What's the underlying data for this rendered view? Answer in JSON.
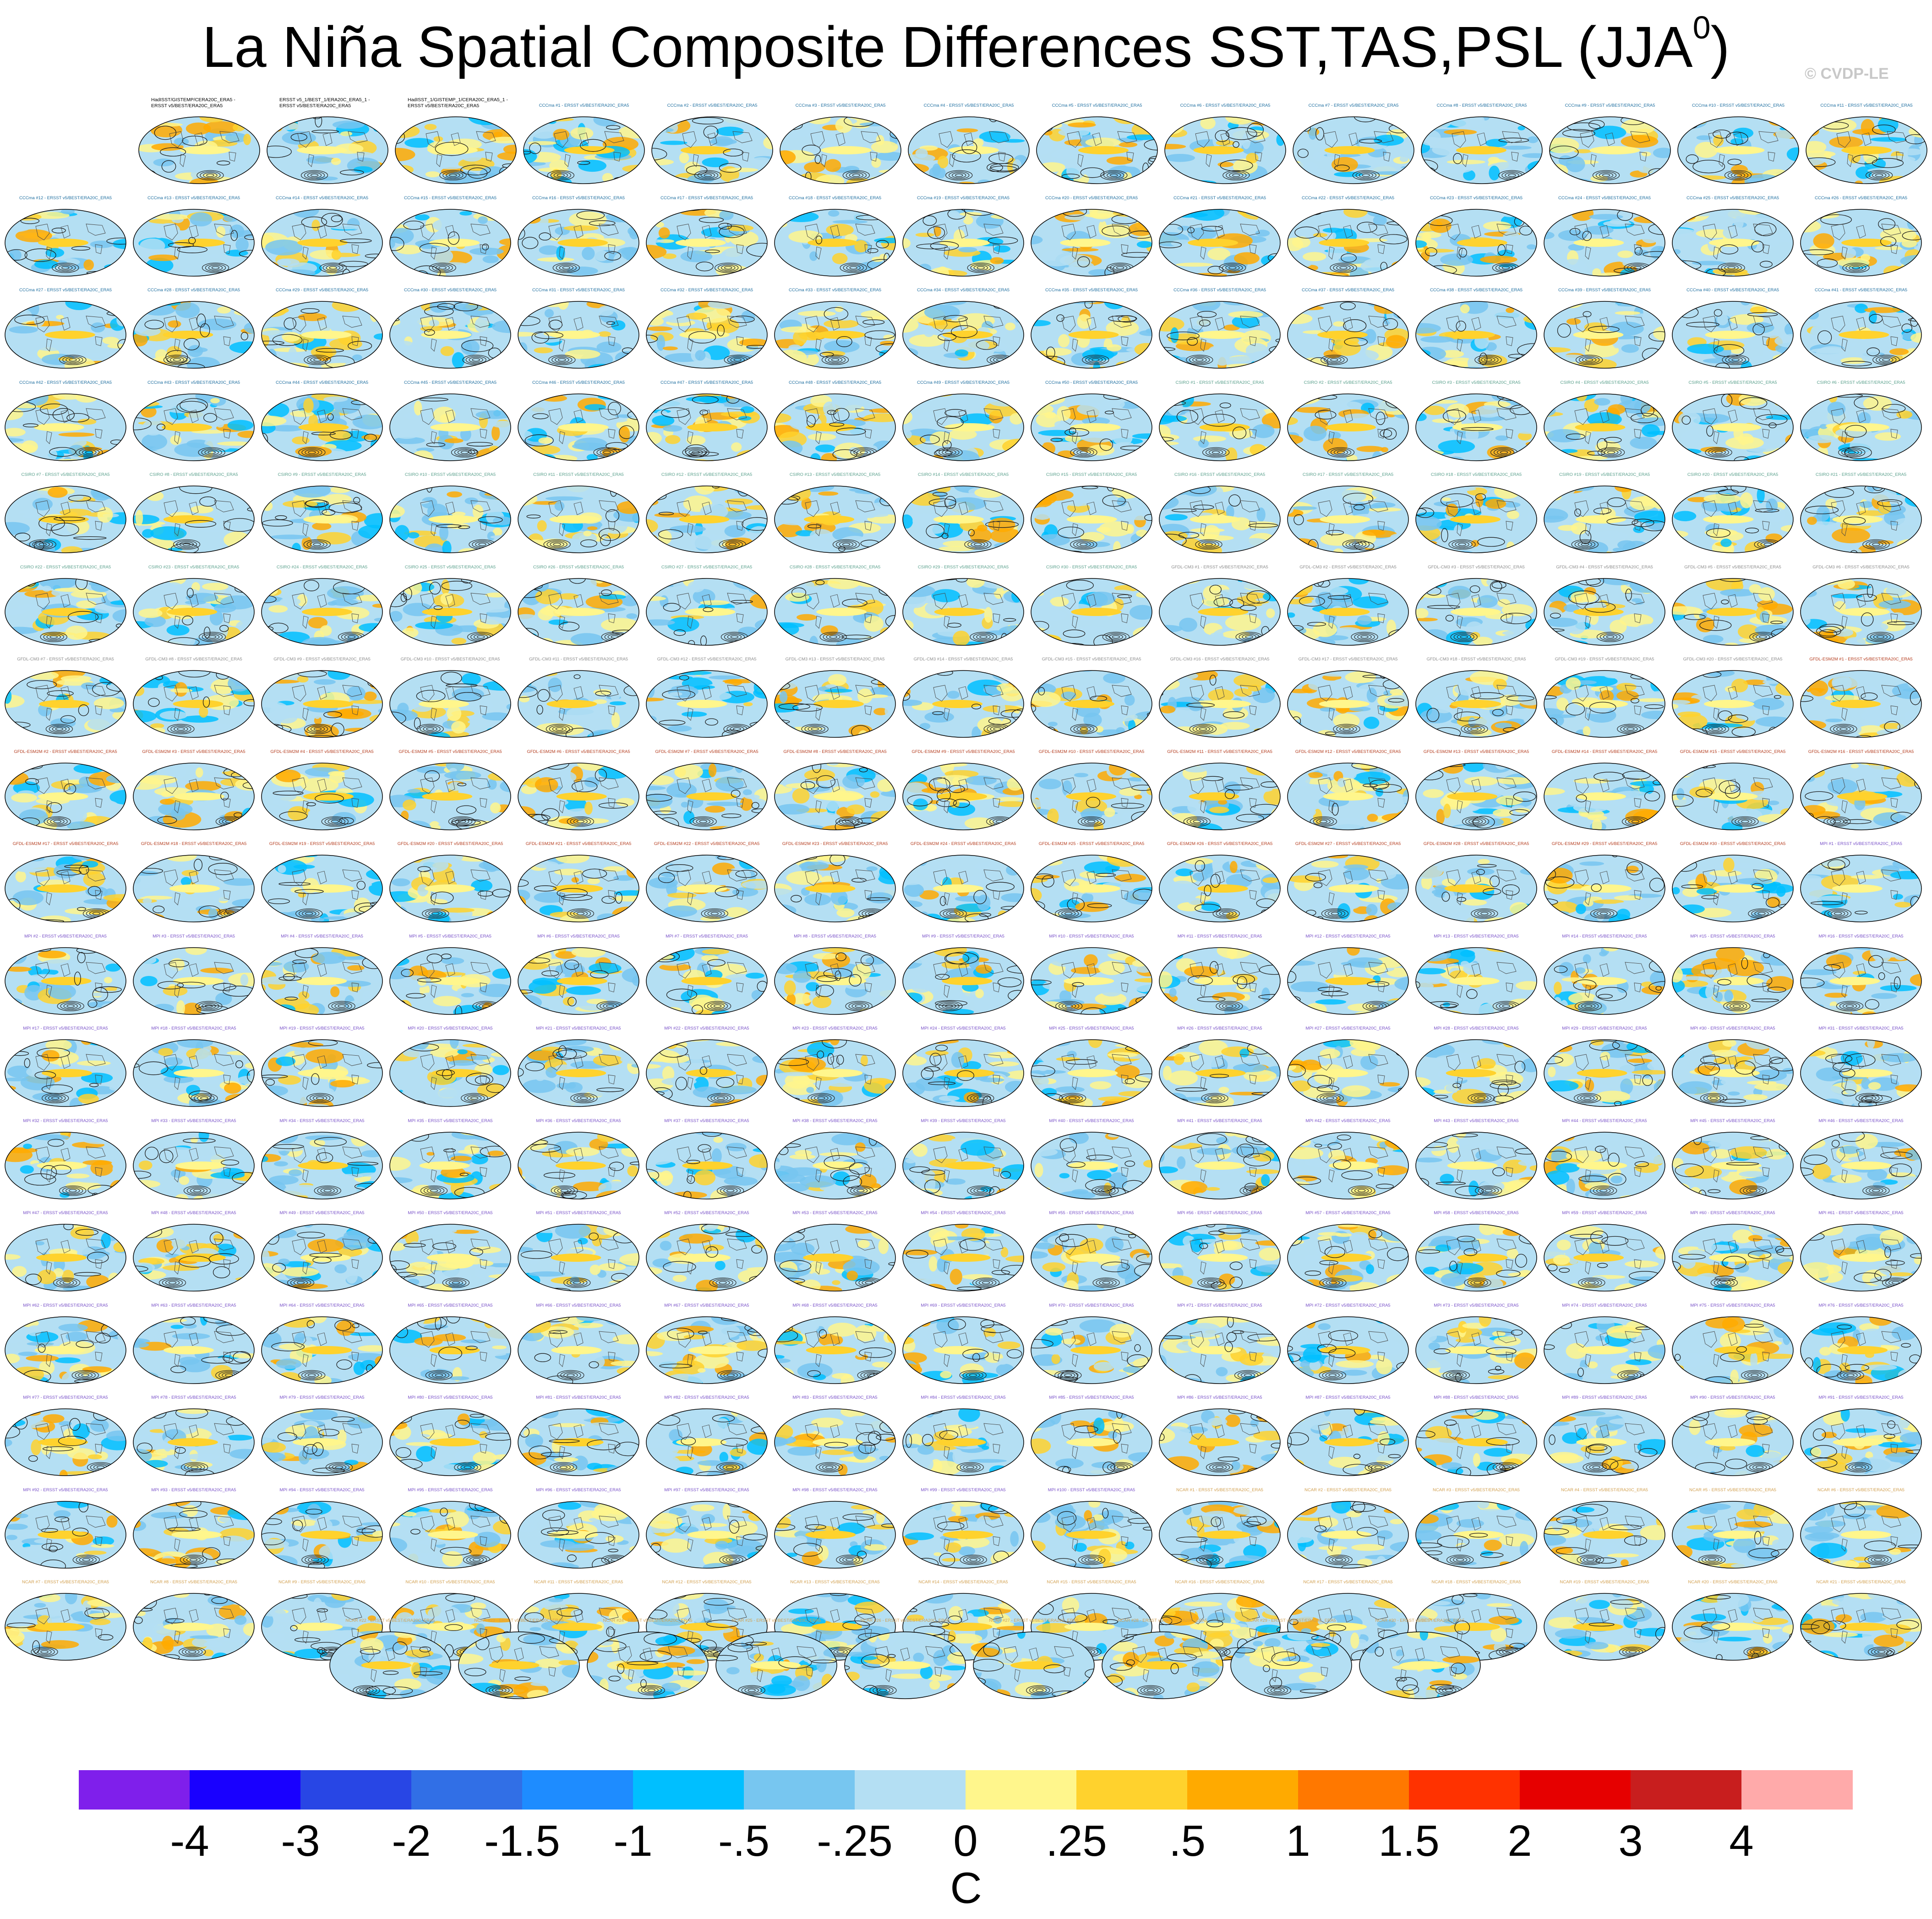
{
  "title": {
    "main": "La Niña Spatial Composite Differences SST,TAS,PSL (JJA",
    "superscript": "0",
    "close": ")"
  },
  "credit": "© CVDP-LE",
  "chart_data": {
    "type": "heatmap",
    "title": "La Niña Spatial Composite Differences SST,TAS,PSL (JJA0)",
    "units": "C",
    "colorbar": {
      "ticks": [
        "-4",
        "-3",
        "-2",
        "-1.5",
        "-1",
        "-.5",
        "-.25",
        "0",
        ".25",
        ".5",
        "1",
        "1.5",
        "2",
        "3",
        "4"
      ],
      "colors": [
        "#7f1feb",
        "#1900ff",
        "#2846e5",
        "#316fe6",
        "#1e8cff",
        "#00bfff",
        "#77c6f0",
        "#b4dff3",
        "#fff68c",
        "#ffd22d",
        "#ffaa00",
        "#ff7800",
        "#ff3200",
        "#e60000",
        "#c81e1e",
        "#ffaaaa"
      ]
    },
    "panel_groups": [
      {
        "prefix": "",
        "labels": [
          "HadISST/GISTEMP/CERA20C_ERA5 -\nERSST v5/BEST/ERA20C_ERA5",
          "ERSST v5_1/BEST_1/ERA20C_ERA5_1 -\nERSST v5/BEST/ERA20C_ERA5",
          "HadISST_1/GISTEMP_1/CERA20C_ERA5_1 -\nERSST v5/BEST/ERA20C_ERA5"
        ],
        "color": "#000000"
      },
      {
        "prefix": "CCCma #",
        "count": 50,
        "color": "#1f6fa0"
      },
      {
        "prefix": "CSIRO #",
        "count": 30,
        "color": "#5aa08c"
      },
      {
        "prefix": "GFDL-CM3 #",
        "count": 20,
        "color": "#8c8c8c"
      },
      {
        "prefix": "GFDL-ESM2M #",
        "count": 30,
        "color": "#b43c1e"
      },
      {
        "prefix": "MPI #",
        "count": 100,
        "color": "#7850c8"
      },
      {
        "prefix": "NCAR #",
        "count": 40,
        "color": "#d2a050"
      },
      {
        "prefix": "SMHI_KNMI #",
        "count": 16,
        "color": "#3c78b4"
      }
    ],
    "label_suffix": " - ERSST v5/BEST/ERA20C_ERA5",
    "panel_count": 289
  }
}
